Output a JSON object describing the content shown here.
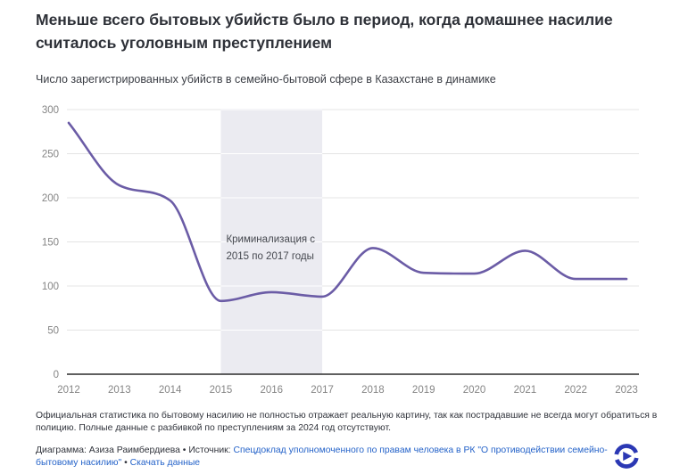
{
  "title": "Меньше всего бытовых убийств было в период, когда домашнее насилие считалось уголовным преступлением",
  "subtitle": "Число зарегистрированных убийств в семейно-бытовой сфере в Казахстане в динамике",
  "chart_data": {
    "type": "line",
    "title": "Меньше всего бытовых убийств было в период, когда домашнее насилие считалось уголовным преступлением",
    "x": [
      2012,
      2013,
      2014,
      2015,
      2016,
      2017,
      2018,
      2019,
      2020,
      2021,
      2022,
      2023
    ],
    "series": [
      {
        "name": "Число зарегистрированных убийств в семейно-бытовой сфере",
        "values": [
          285,
          214,
          197,
          83,
          93,
          88,
          143,
          115,
          114,
          140,
          108,
          108
        ]
      }
    ],
    "xlabel": "",
    "ylabel": "",
    "ylim": [
      0,
      300
    ],
    "yticks": [
      0,
      50,
      100,
      150,
      200,
      250,
      300
    ],
    "xticks": [
      2012,
      2013,
      2014,
      2015,
      2016,
      2017,
      2018,
      2019,
      2020,
      2021,
      2022,
      2023
    ],
    "grid": true,
    "legend": "none",
    "band": {
      "from": 2015,
      "to": 2017,
      "label_lines": [
        "Криминализация с",
        "2015 по 2017 годы"
      ],
      "label": "Криминализация с 2015 по 2017 годы"
    },
    "colors": {
      "line": "#6b5ca6",
      "band": "#ebebf1",
      "grid": "#e4e4e4",
      "grid_on_band": "#ffffff",
      "axis": "#2b2b2b",
      "tick_text": "#858585",
      "annotation_text": "#44474e"
    }
  },
  "footer": {
    "note": "Официальная статистика по бытовому насилию не полностью отражает реальную картину, так как пострадавшие не всегда могут обратиться в полицию. Полные данные с разбивкой по преступлениям за 2024 год отсутствуют.",
    "byline": "Диаграмма: Азиза Раимбердиева • Источник: ",
    "source_link": "Спецдоклад уполномоченного по правам человека в РК \"О противодействии семейно-бытовому насилию\"",
    "separator": " • ",
    "download_link": "Скачать данные",
    "link_color": "#2563c9",
    "logo_color": "#2b38b4"
  }
}
